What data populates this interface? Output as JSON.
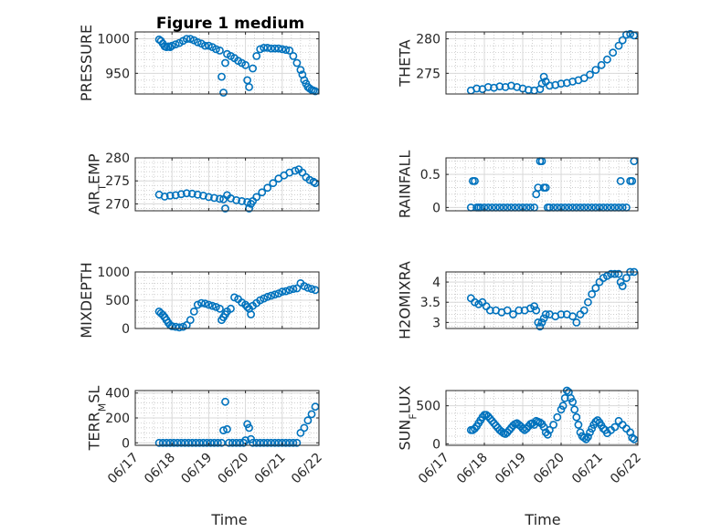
{
  "figure": {
    "title": "Figure 1 medium"
  },
  "colors": {
    "marker": "#0072BD",
    "axis": "#262626",
    "grid": "#d9d9d9"
  },
  "chart_data": [
    {
      "type": "scatter",
      "ylabel": "PRESSURE",
      "ylim": [
        920,
        1010
      ],
      "yticks": [
        950,
        1000
      ],
      "xlim": [
        0,
        5
      ],
      "xticks": [
        "06/17",
        "06/18",
        "06/19",
        "06/20",
        "06/21",
        "06/22"
      ],
      "show_xtick_labels": false,
      "x": [
        0.65,
        0.7,
        0.75,
        0.8,
        0.85,
        0.9,
        0.95,
        1.0,
        1.1,
        1.2,
        1.3,
        1.4,
        1.5,
        1.6,
        1.7,
        1.8,
        1.9,
        2.0,
        2.1,
        2.2,
        2.3,
        2.35,
        2.4,
        2.45,
        2.5,
        2.6,
        2.7,
        2.8,
        2.9,
        3.0,
        3.05,
        3.1,
        3.2,
        3.3,
        3.4,
        3.5,
        3.6,
        3.7,
        3.8,
        3.9,
        4.0,
        4.1,
        4.2,
        4.3,
        4.4,
        4.5,
        4.55,
        4.6,
        4.65,
        4.7,
        4.75,
        4.8,
        4.85,
        4.9
      ],
      "y": [
        999,
        997,
        993,
        989,
        988,
        989,
        988,
        990,
        992,
        994,
        997,
        1000,
        1000,
        998,
        995,
        993,
        990,
        990,
        988,
        985,
        983,
        945,
        922,
        965,
        978,
        975,
        972,
        968,
        965,
        962,
        940,
        930,
        957,
        975,
        985,
        987,
        987,
        986,
        986,
        986,
        985,
        984,
        983,
        975,
        965,
        955,
        948,
        940,
        935,
        930,
        928,
        926,
        925,
        924
      ]
    },
    {
      "type": "scatter",
      "ylabel": "THETA",
      "ylim": [
        272,
        281
      ],
      "yticks": [
        275,
        280
      ],
      "xlim": [
        0,
        5
      ],
      "xticks": [
        "06/17",
        "06/18",
        "06/19",
        "06/20",
        "06/21",
        "06/22"
      ],
      "show_xtick_labels": false,
      "x": [
        0.65,
        0.8,
        0.95,
        1.1,
        1.25,
        1.4,
        1.55,
        1.7,
        1.85,
        2.0,
        2.15,
        2.3,
        2.45,
        2.5,
        2.55,
        2.6,
        2.7,
        2.85,
        3.0,
        3.15,
        3.3,
        3.45,
        3.6,
        3.75,
        3.9,
        4.05,
        4.2,
        4.35,
        4.5,
        4.6,
        4.7,
        4.8,
        4.9
      ],
      "y": [
        272.5,
        272.8,
        272.7,
        273.0,
        272.9,
        273.1,
        273.0,
        273.2,
        273.0,
        272.8,
        272.6,
        272.5,
        272.7,
        273.5,
        274.5,
        273.8,
        273.2,
        273.3,
        273.5,
        273.6,
        273.8,
        274.0,
        274.3,
        274.8,
        275.5,
        276.2,
        277.0,
        278.0,
        279.0,
        279.8,
        280.6,
        280.7,
        280.5
      ]
    },
    {
      "type": "scatter",
      "ylabel": "AIR_TEMP",
      "ylim": [
        268.5,
        280
      ],
      "yticks": [
        270,
        275,
        280
      ],
      "xlim": [
        0,
        5
      ],
      "xticks": [
        "06/17",
        "06/18",
        "06/19",
        "06/20",
        "06/21",
        "06/22"
      ],
      "show_xtick_labels": false,
      "x": [
        0.65,
        0.8,
        0.95,
        1.1,
        1.25,
        1.4,
        1.55,
        1.7,
        1.85,
        2.0,
        2.15,
        2.3,
        2.4,
        2.45,
        2.5,
        2.6,
        2.75,
        2.9,
        3.05,
        3.1,
        3.15,
        3.2,
        3.3,
        3.45,
        3.6,
        3.75,
        3.9,
        4.05,
        4.2,
        4.35,
        4.45,
        4.55,
        4.65,
        4.75,
        4.85,
        4.9
      ],
      "y": [
        272.0,
        271.6,
        271.8,
        271.9,
        272.1,
        272.3,
        272.2,
        272.0,
        271.8,
        271.5,
        271.3,
        271.1,
        271.0,
        269.0,
        271.9,
        271.2,
        270.8,
        270.6,
        270.4,
        269.0,
        270.0,
        270.6,
        271.5,
        272.5,
        273.5,
        274.5,
        275.5,
        276.2,
        276.8,
        277.2,
        277.5,
        276.8,
        275.8,
        275.2,
        274.8,
        274.5
      ]
    },
    {
      "type": "scatter",
      "ylabel": "RAINFALL",
      "ylim": [
        -0.05,
        0.75
      ],
      "yticks": [
        0,
        0.5
      ],
      "xlim": [
        0,
        5
      ],
      "xticks": [
        "06/17",
        "06/18",
        "06/19",
        "06/20",
        "06/21",
        "06/22"
      ],
      "show_xtick_labels": false,
      "x": [
        0.65,
        0.7,
        0.75,
        0.8,
        0.85,
        0.9,
        1.0,
        1.1,
        1.2,
        1.3,
        1.4,
        1.5,
        1.6,
        1.7,
        1.8,
        1.9,
        2.0,
        2.1,
        2.2,
        2.3,
        2.35,
        2.4,
        2.45,
        2.5,
        2.55,
        2.6,
        2.65,
        2.7,
        2.8,
        2.9,
        3.0,
        3.1,
        3.2,
        3.3,
        3.4,
        3.5,
        3.6,
        3.7,
        3.8,
        3.9,
        4.0,
        4.1,
        4.2,
        4.3,
        4.4,
        4.5,
        4.55,
        4.6,
        4.7,
        4.8,
        4.85,
        4.9
      ],
      "y": [
        0,
        0.4,
        0.4,
        0,
        0,
        0,
        0,
        0,
        0,
        0,
        0,
        0,
        0,
        0,
        0,
        0,
        0,
        0,
        0,
        0,
        0.2,
        0.3,
        0.7,
        0.7,
        0.3,
        0.3,
        0,
        0,
        0,
        0,
        0,
        0,
        0,
        0,
        0,
        0,
        0,
        0,
        0,
        0,
        0,
        0,
        0,
        0,
        0,
        0,
        0.4,
        0,
        0,
        0.4,
        0.4,
        0.7
      ]
    },
    {
      "type": "scatter",
      "ylabel": "MIXDEPTH",
      "ylim": [
        0,
        1000
      ],
      "yticks": [
        0,
        500,
        1000
      ],
      "xlim": [
        0,
        5
      ],
      "xticks": [
        "06/17",
        "06/18",
        "06/19",
        "06/20",
        "06/21",
        "06/22"
      ],
      "show_xtick_labels": false,
      "x": [
        0.65,
        0.7,
        0.75,
        0.8,
        0.85,
        0.9,
        0.95,
        1.0,
        1.1,
        1.2,
        1.3,
        1.4,
        1.5,
        1.6,
        1.7,
        1.8,
        1.9,
        2.0,
        2.1,
        2.2,
        2.3,
        2.35,
        2.4,
        2.45,
        2.5,
        2.6,
        2.7,
        2.8,
        2.9,
        3.0,
        3.05,
        3.1,
        3.15,
        3.2,
        3.3,
        3.4,
        3.5,
        3.6,
        3.7,
        3.8,
        3.9,
        4.0,
        4.1,
        4.2,
        4.3,
        4.4,
        4.5,
        4.6,
        4.7,
        4.8,
        4.9
      ],
      "y": [
        300,
        270,
        240,
        200,
        150,
        100,
        60,
        40,
        30,
        20,
        30,
        60,
        150,
        300,
        420,
        450,
        440,
        420,
        400,
        380,
        350,
        150,
        200,
        250,
        300,
        350,
        550,
        520,
        460,
        420,
        380,
        350,
        250,
        400,
        450,
        500,
        530,
        560,
        580,
        600,
        620,
        650,
        660,
        680,
        700,
        710,
        800,
        750,
        720,
        700,
        680
      ]
    },
    {
      "type": "scatter",
      "ylabel": "H2OMIXRA",
      "ylim": [
        2.85,
        4.25
      ],
      "yticks": [
        3,
        3.5,
        4
      ],
      "xlim": [
        0,
        5
      ],
      "xticks": [
        "06/17",
        "06/18",
        "06/19",
        "06/20",
        "06/21",
        "06/22"
      ],
      "show_xtick_labels": false,
      "x": [
        0.65,
        0.75,
        0.85,
        0.95,
        1.05,
        1.15,
        1.3,
        1.45,
        1.6,
        1.75,
        1.9,
        2.05,
        2.2,
        2.3,
        2.35,
        2.4,
        2.45,
        2.5,
        2.55,
        2.6,
        2.7,
        2.85,
        3.0,
        3.15,
        3.3,
        3.4,
        3.5,
        3.6,
        3.7,
        3.8,
        3.9,
        4.0,
        4.1,
        4.2,
        4.3,
        4.4,
        4.5,
        4.55,
        4.6,
        4.7,
        4.8,
        4.9
      ],
      "y": [
        3.6,
        3.5,
        3.45,
        3.5,
        3.4,
        3.3,
        3.3,
        3.25,
        3.3,
        3.2,
        3.3,
        3.3,
        3.35,
        3.4,
        3.3,
        3.0,
        2.9,
        3.0,
        3.1,
        3.2,
        3.2,
        3.15,
        3.2,
        3.2,
        3.15,
        3.0,
        3.2,
        3.3,
        3.5,
        3.7,
        3.85,
        4.0,
        4.1,
        4.15,
        4.2,
        4.2,
        4.2,
        4.0,
        3.9,
        4.1,
        4.25,
        4.25
      ]
    },
    {
      "type": "scatter",
      "ylabel": "TERR_MSL",
      "ylim": [
        -20,
        420
      ],
      "yticks": [
        0,
        200,
        400
      ],
      "xlim": [
        0,
        5
      ],
      "xticks": [
        "06/17",
        "06/18",
        "06/19",
        "06/20",
        "06/21",
        "06/22"
      ],
      "show_xtick_labels": true,
      "x": [
        0.65,
        0.75,
        0.85,
        0.95,
        1.05,
        1.15,
        1.25,
        1.35,
        1.45,
        1.55,
        1.65,
        1.75,
        1.85,
        1.95,
        2.05,
        2.15,
        2.25,
        2.35,
        2.4,
        2.45,
        2.5,
        2.55,
        2.65,
        2.75,
        2.85,
        2.95,
        3.0,
        3.05,
        3.1,
        3.15,
        3.2,
        3.3,
        3.4,
        3.5,
        3.6,
        3.7,
        3.8,
        3.9,
        4.0,
        4.1,
        4.2,
        4.3,
        4.4,
        4.5,
        4.6,
        4.7,
        4.8,
        4.9
      ],
      "y": [
        0,
        0,
        0,
        0,
        0,
        0,
        0,
        0,
        0,
        0,
        0,
        0,
        0,
        0,
        0,
        0,
        0,
        0,
        100,
        330,
        110,
        0,
        0,
        0,
        0,
        0,
        20,
        150,
        120,
        30,
        0,
        0,
        0,
        0,
        0,
        0,
        0,
        0,
        0,
        0,
        0,
        0,
        0,
        80,
        120,
        180,
        230,
        290
      ]
    },
    {
      "type": "scatter",
      "ylabel": "SUN_FLUX",
      "ylim": [
        -20,
        700
      ],
      "yticks": [
        0,
        500
      ],
      "xlim": [
        0,
        5
      ],
      "xticks": [
        "06/17",
        "06/18",
        "06/19",
        "06/20",
        "06/21",
        "06/22"
      ],
      "show_xtick_labels": true,
      "x": [
        0.65,
        0.7,
        0.75,
        0.8,
        0.85,
        0.9,
        0.95,
        1.0,
        1.05,
        1.1,
        1.15,
        1.2,
        1.25,
        1.3,
        1.35,
        1.4,
        1.45,
        1.5,
        1.55,
        1.6,
        1.65,
        1.7,
        1.75,
        1.8,
        1.85,
        1.9,
        1.95,
        2.0,
        2.05,
        2.1,
        2.15,
        2.2,
        2.25,
        2.3,
        2.35,
        2.4,
        2.45,
        2.5,
        2.55,
        2.6,
        2.65,
        2.7,
        2.8,
        2.9,
        3.0,
        3.05,
        3.1,
        3.15,
        3.2,
        3.25,
        3.3,
        3.35,
        3.4,
        3.45,
        3.5,
        3.55,
        3.6,
        3.65,
        3.7,
        3.75,
        3.8,
        3.85,
        3.9,
        3.95,
        4.0,
        4.05,
        4.1,
        4.15,
        4.2,
        4.3,
        4.4,
        4.5,
        4.6,
        4.7,
        4.8,
        4.85,
        4.9
      ],
      "y": [
        180,
        180,
        200,
        230,
        270,
        310,
        350,
        380,
        380,
        360,
        330,
        300,
        270,
        240,
        210,
        180,
        160,
        140,
        130,
        150,
        180,
        210,
        240,
        260,
        270,
        250,
        230,
        200,
        180,
        200,
        230,
        260,
        270,
        250,
        300,
        290,
        280,
        260,
        220,
        150,
        120,
        180,
        250,
        350,
        450,
        500,
        600,
        700,
        680,
        600,
        550,
        450,
        350,
        250,
        150,
        100,
        80,
        60,
        90,
        150,
        200,
        250,
        290,
        310,
        280,
        240,
        200,
        180,
        140,
        180,
        220,
        300,
        250,
        200,
        150,
        80,
        60
      ]
    }
  ]
}
